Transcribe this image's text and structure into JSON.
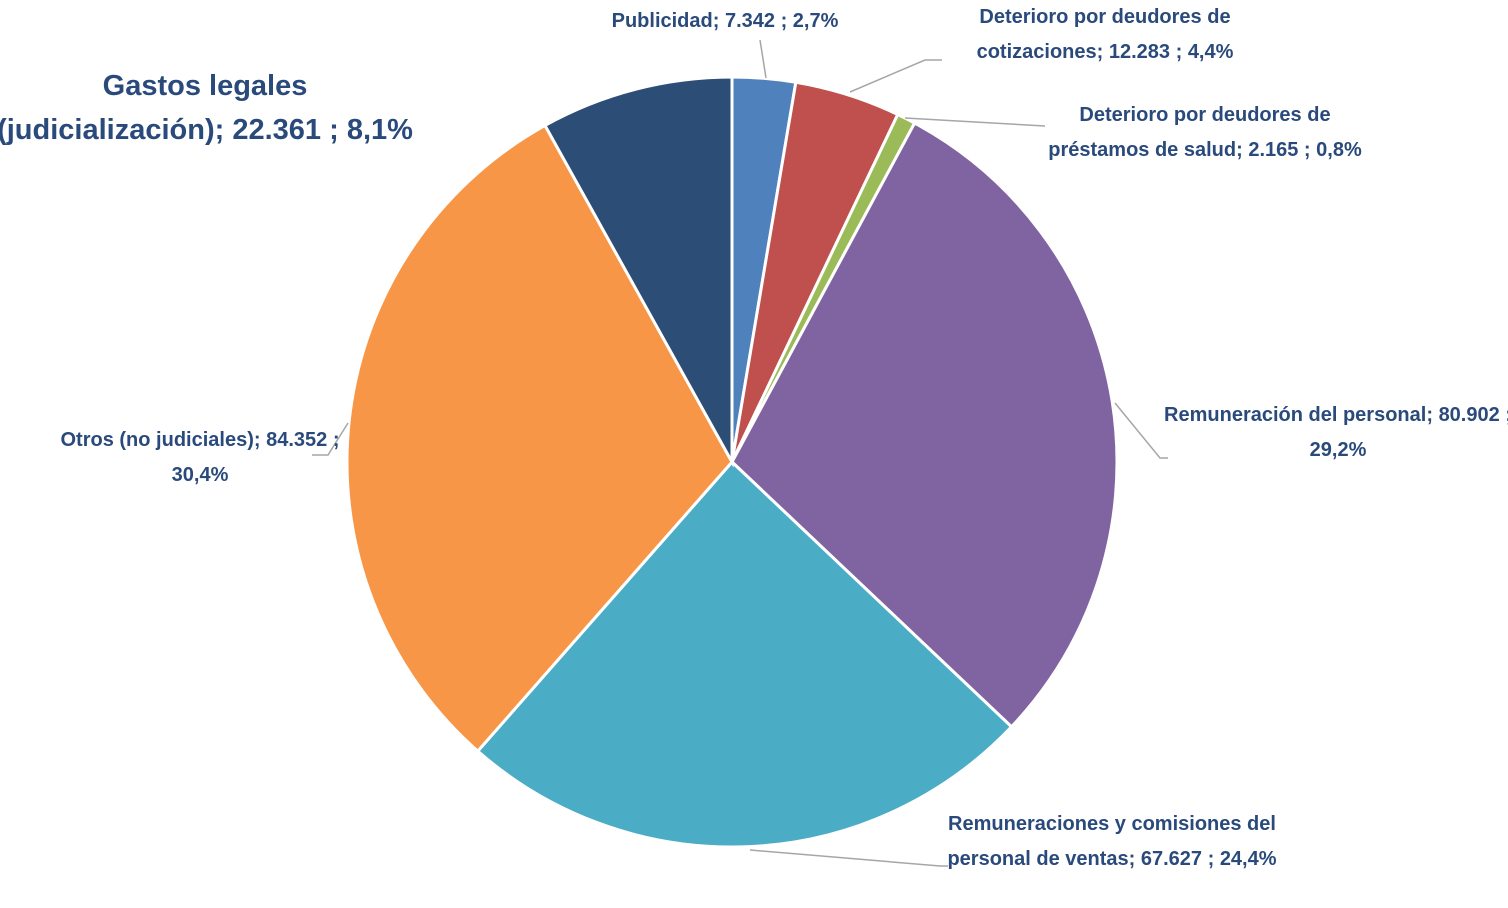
{
  "chart_data": {
    "type": "pie",
    "categories": [
      "Publicidad;",
      "Deterioro por deudores de cotizaciones;",
      "Deterioro por deudores de préstamos de salud;",
      "Remuneración del personal;",
      "Remuneraciones y comisiones del personal de ventas;",
      "Otros (no judiciales);",
      "Gastos legales (judicialización);"
    ],
    "values": [
      7342,
      12283,
      2165,
      80902,
      67627,
      84352,
      22361
    ],
    "value_labels": [
      "7.342 ;",
      "12.283 ;",
      "2.165 ;",
      "80.902 ;",
      "67.627 ;",
      "84.352 ;",
      "22.361 ;"
    ],
    "percents": [
      2.7,
      4.4,
      0.8,
      29.2,
      24.4,
      30.4,
      8.1
    ],
    "percent_labels": [
      "2,7%",
      "4,4%",
      "0,8%",
      "29,2%",
      "24,4%",
      "30,4%",
      "8,1%"
    ],
    "colors": [
      "#4f81bd",
      "#c0504d",
      "#9bbb59",
      "#8064a2",
      "#4bacc6",
      "#f79646",
      "#2c4d75"
    ],
    "start_angle": 0,
    "direction": "clockwise"
  }
}
